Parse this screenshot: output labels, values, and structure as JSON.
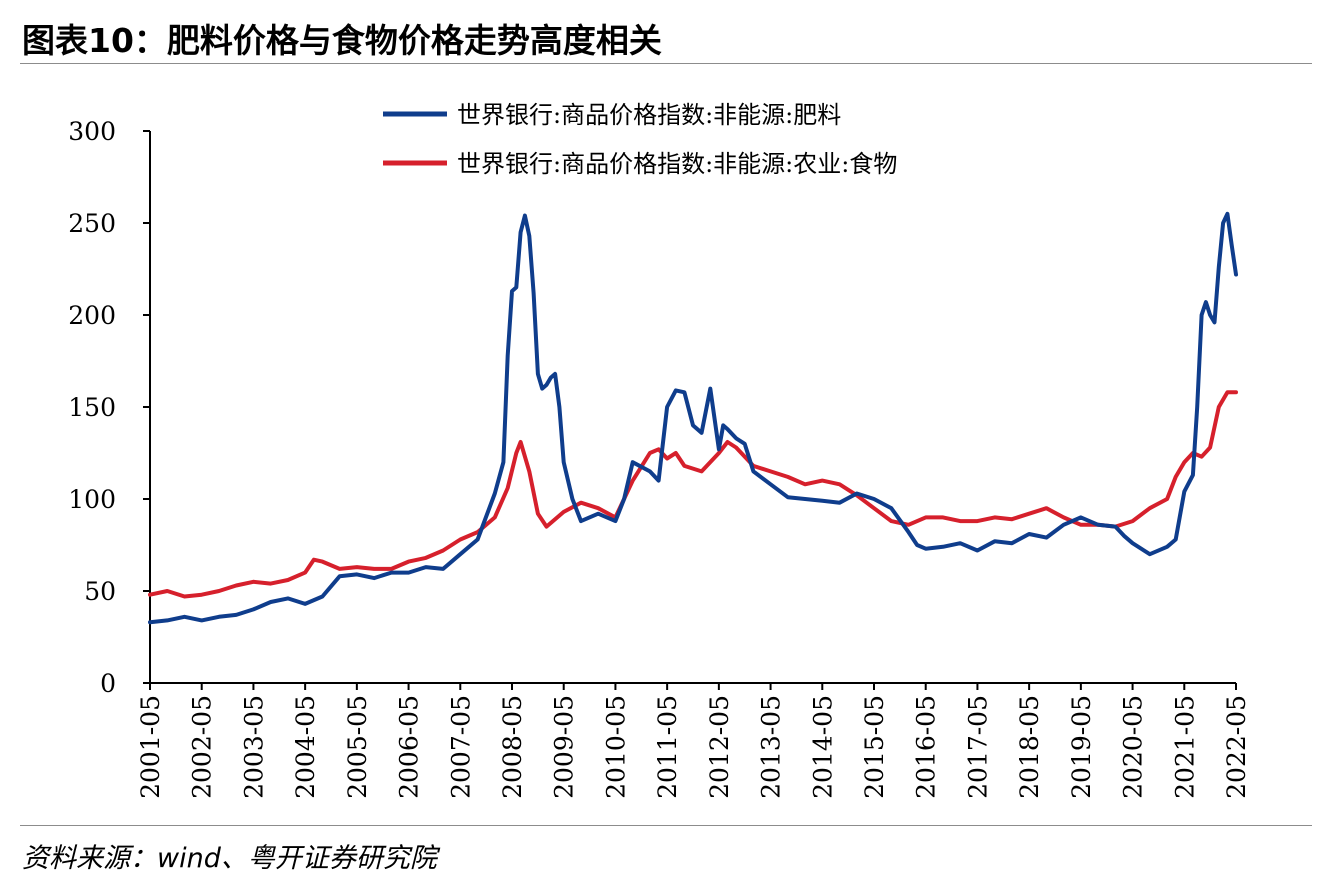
{
  "title": "图表10：肥料价格与食物价格走势高度相关",
  "source": "资料来源：wind、粤开证券研究院",
  "chart_data": {
    "type": "line",
    "ylim": [
      0,
      300
    ],
    "yticks": [
      0,
      50,
      100,
      150,
      200,
      250,
      300
    ],
    "xticks": [
      "2001-05",
      "2002-05",
      "2003-05",
      "2004-05",
      "2005-05",
      "2006-05",
      "2007-05",
      "2008-05",
      "2009-05",
      "2010-05",
      "2011-05",
      "2012-05",
      "2013-05",
      "2014-05",
      "2015-05",
      "2016-05",
      "2017-05",
      "2018-05",
      "2019-05",
      "2020-05",
      "2021-05",
      "2022-05"
    ],
    "xlim": [
      2001.333,
      2022.333
    ],
    "legend_position": "top",
    "series": [
      {
        "name": "世界银行:商品价格指数:非能源:肥料",
        "color": "#0f3d8c",
        "x": [
          2001.333,
          2001.667,
          2002.0,
          2002.333,
          2002.667,
          2003.0,
          2003.333,
          2003.667,
          2004.0,
          2004.333,
          2004.667,
          2005.0,
          2005.333,
          2005.667,
          2006.0,
          2006.333,
          2006.667,
          2007.0,
          2007.333,
          2007.667,
          2008.0,
          2008.167,
          2008.25,
          2008.333,
          2008.417,
          2008.5,
          2008.583,
          2008.667,
          2008.75,
          2008.833,
          2008.917,
          2009.0,
          2009.083,
          2009.167,
          2009.25,
          2009.333,
          2009.5,
          2009.667,
          2010.0,
          2010.333,
          2010.5,
          2010.667,
          2011.0,
          2011.167,
          2011.333,
          2011.5,
          2011.667,
          2011.833,
          2012.0,
          2012.167,
          2012.333,
          2012.417,
          2012.5,
          2012.667,
          2012.833,
          2013.0,
          2013.333,
          2013.667,
          2014.0,
          2014.333,
          2014.667,
          2015.0,
          2015.333,
          2015.667,
          2016.0,
          2016.167,
          2016.333,
          2016.667,
          2017.0,
          2017.333,
          2017.667,
          2018.0,
          2018.333,
          2018.667,
          2019.0,
          2019.333,
          2019.667,
          2020.0,
          2020.167,
          2020.333,
          2020.5,
          2020.667,
          2021.0,
          2021.167,
          2021.333,
          2021.5,
          2021.583,
          2021.667,
          2021.75,
          2021.833,
          2021.917,
          2022.0,
          2022.083,
          2022.167,
          2022.25,
          2022.333
        ],
        "values": [
          33,
          34,
          36,
          34,
          36,
          37,
          40,
          44,
          46,
          43,
          47,
          58,
          59,
          57,
          60,
          60,
          63,
          62,
          70,
          78,
          103,
          120,
          178,
          213,
          215,
          245,
          254,
          243,
          212,
          168,
          160,
          162,
          166,
          168,
          150,
          120,
          100,
          88,
          92,
          88,
          100,
          120,
          115,
          110,
          150,
          159,
          158,
          140,
          136,
          160,
          127,
          140,
          138,
          133,
          130,
          115,
          108,
          101,
          100,
          99,
          98,
          103,
          100,
          95,
          82,
          75,
          73,
          74,
          76,
          72,
          77,
          76,
          81,
          79,
          86,
          90,
          86,
          85,
          80,
          76,
          73,
          70,
          74,
          78,
          104,
          113,
          150,
          200,
          207,
          200,
          196,
          226,
          250,
          255,
          238,
          222
        ]
      },
      {
        "name": "世界银行:商品价格指数:非能源:农业:食物",
        "color": "#d6202c",
        "x": [
          2001.333,
          2001.667,
          2002.0,
          2002.333,
          2002.667,
          2003.0,
          2003.333,
          2003.667,
          2004.0,
          2004.333,
          2004.5,
          2004.667,
          2005.0,
          2005.333,
          2005.667,
          2006.0,
          2006.333,
          2006.667,
          2007.0,
          2007.333,
          2007.667,
          2008.0,
          2008.25,
          2008.417,
          2008.5,
          2008.667,
          2008.833,
          2009.0,
          2009.333,
          2009.667,
          2010.0,
          2010.333,
          2010.667,
          2011.0,
          2011.167,
          2011.333,
          2011.5,
          2011.667,
          2012.0,
          2012.333,
          2012.5,
          2012.667,
          2013.0,
          2013.333,
          2013.667,
          2014.0,
          2014.333,
          2014.667,
          2015.0,
          2015.333,
          2015.667,
          2016.0,
          2016.333,
          2016.667,
          2017.0,
          2017.333,
          2017.667,
          2018.0,
          2018.333,
          2018.667,
          2019.0,
          2019.333,
          2019.667,
          2020.0,
          2020.333,
          2020.667,
          2021.0,
          2021.167,
          2021.333,
          2021.5,
          2021.667,
          2021.833,
          2022.0,
          2022.167,
          2022.333
        ],
        "values": [
          48,
          50,
          47,
          48,
          50,
          53,
          55,
          54,
          56,
          60,
          67,
          66,
          62,
          63,
          62,
          62,
          66,
          68,
          72,
          78,
          82,
          90,
          106,
          125,
          131,
          115,
          92,
          85,
          93,
          98,
          95,
          90,
          110,
          125,
          127,
          122,
          125,
          118,
          115,
          125,
          131,
          128,
          118,
          115,
          112,
          108,
          110,
          108,
          102,
          95,
          88,
          86,
          90,
          90,
          88,
          88,
          90,
          89,
          92,
          95,
          90,
          86,
          86,
          85,
          88,
          95,
          100,
          112,
          120,
          125,
          123,
          128,
          150,
          158,
          158
        ]
      }
    ]
  }
}
